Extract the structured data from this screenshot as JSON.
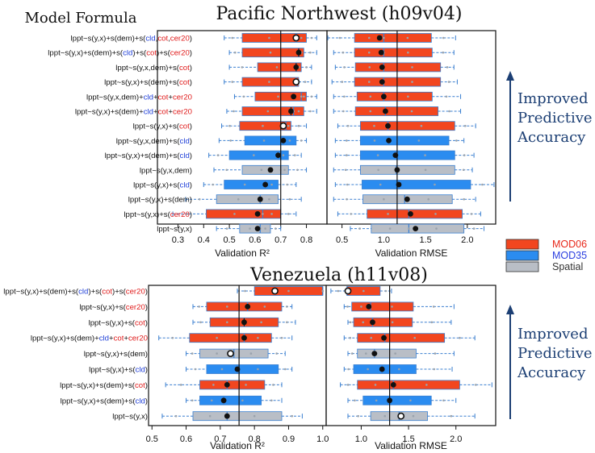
{
  "header_label": "Model Formula",
  "legend": {
    "entries": [
      {
        "label": "MOD06",
        "color": "#f2461f",
        "text_color": "#e8281a"
      },
      {
        "label": "MOD35",
        "color": "#2b8cf0",
        "text_color": "#2b3fe0"
      },
      {
        "label": "Spatial",
        "color": "#b9bec6",
        "text_color": "#333333"
      }
    ]
  },
  "colors": {
    "cot": "#e01b1b",
    "cld": "#1f3fd8",
    "cer": "#e01b1b",
    "plain": "#111111",
    "outline": "#3a7fd0",
    "arrow": "#1c3f74"
  },
  "annotation": {
    "lines": [
      "Improved",
      "Predictive",
      "Accuracy"
    ]
  },
  "chart_data": [
    {
      "type": "boxplot",
      "title": "Pacific Northwest (h09v04)",
      "panels": [
        {
          "xlabel": "Validation R²",
          "xlim": [
            0.22,
            0.88
          ],
          "ticks": [
            0.3,
            0.4,
            0.5,
            0.6,
            0.7,
            0.8
          ],
          "reference": 0.7
        },
        {
          "xlabel": "Validation RMSE",
          "xlim": [
            0.32,
            2.34
          ],
          "ticks": [
            0.5,
            1.0,
            1.5,
            2.0
          ],
          "reference": 1.16
        }
      ],
      "rows": [
        {
          "formula": [
            [
              "lppt~s(y,x)+s(dem)+s(",
              "plain"
            ],
            [
              "cld",
              "cld"
            ],
            [
              ",",
              "plain"
            ],
            [
              "cot",
              "cot"
            ],
            [
              ",",
              "plain"
            ],
            [
              "cer20",
              "cer"
            ],
            [
              ")",
              "plain"
            ]
          ],
          "category": "MOD06",
          "r2": {
            "wl": 0.48,
            "q1": 0.55,
            "med": 0.76,
            "q3": 0.8,
            "wh": 0.84,
            "mean": 0.76,
            "mean_marker": "open"
          },
          "rmse": {
            "wl": 0.33,
            "q1": 0.65,
            "med": 1.0,
            "q3": 1.57,
            "wh": 1.86,
            "mean": 0.95,
            "mean_marker": "filled"
          }
        },
        {
          "formula": [
            [
              "lppt~s(y,x)+s(dem)+s(",
              "plain"
            ],
            [
              "cld",
              "cld"
            ],
            [
              ")+s(",
              "plain"
            ],
            [
              "cot",
              "cot"
            ],
            [
              ")+s(",
              "plain"
            ],
            [
              "cer20",
              "cer"
            ],
            [
              ")",
              "plain"
            ]
          ],
          "category": "MOD06",
          "r2": {
            "wl": 0.5,
            "q1": 0.55,
            "med": 0.77,
            "q3": 0.79,
            "wh": 0.84,
            "mean": 0.77,
            "mean_marker": "cross"
          },
          "rmse": {
            "wl": 0.4,
            "q1": 0.65,
            "med": 1.0,
            "q3": 1.58,
            "wh": 1.84,
            "mean": 0.97,
            "mean_marker": "filled"
          }
        },
        {
          "formula": [
            [
              "lppt~s(y,x,dem)+s(",
              "plain"
            ],
            [
              "cot",
              "cot"
            ],
            [
              ")",
              "plain"
            ]
          ],
          "category": "MOD06",
          "r2": {
            "wl": 0.5,
            "q1": 0.61,
            "med": 0.76,
            "q3": 0.78,
            "wh": 0.82,
            "mean": 0.76,
            "mean_marker": "cross"
          },
          "rmse": {
            "wl": 0.42,
            "q1": 0.66,
            "med": 1.0,
            "q3": 1.68,
            "wh": 1.84,
            "mean": 0.98,
            "mean_marker": "filled"
          }
        },
        {
          "formula": [
            [
              "lppt~s(y,x)+s(dem)+s(",
              "plain"
            ],
            [
              "cot",
              "cot"
            ],
            [
              ")",
              "plain"
            ]
          ],
          "category": "MOD06",
          "r2": {
            "wl": 0.48,
            "q1": 0.55,
            "med": 0.76,
            "q3": 0.77,
            "wh": 0.82,
            "mean": 0.76,
            "mean_marker": "open"
          },
          "rmse": {
            "wl": 0.38,
            "q1": 0.65,
            "med": 1.0,
            "q3": 1.68,
            "wh": 1.88,
            "mean": 0.98,
            "mean_marker": "filled"
          }
        },
        {
          "formula": [
            [
              "lppt~s(y,x,dem)+",
              "plain"
            ],
            [
              "cld",
              "cld"
            ],
            [
              "+",
              "plain"
            ],
            [
              "cot",
              "cot"
            ],
            [
              "+",
              "plain"
            ],
            [
              "cer20",
              "cer"
            ]
          ],
          "category": "MOD06",
          "r2": {
            "wl": 0.52,
            "q1": 0.6,
            "med": 0.78,
            "q3": 0.8,
            "wh": 0.84,
            "mean": 0.75,
            "mean_marker": "filled"
          },
          "rmse": {
            "wl": 0.4,
            "q1": 0.68,
            "med": 1.0,
            "q3": 1.58,
            "wh": 1.92,
            "mean": 1.0,
            "mean_marker": "filled"
          }
        },
        {
          "formula": [
            [
              "lppt~s(y,x)+s(dem)+",
              "plain"
            ],
            [
              "cld",
              "cld"
            ],
            [
              "+",
              "plain"
            ],
            [
              "cot",
              "cot"
            ],
            [
              "+",
              "plain"
            ],
            [
              "cer20",
              "cer"
            ]
          ],
          "category": "MOD06",
          "r2": {
            "wl": 0.49,
            "q1": 0.55,
            "med": 0.75,
            "q3": 0.79,
            "wh": 0.84,
            "mean": 0.74,
            "mean_marker": "cross"
          },
          "rmse": {
            "wl": 0.4,
            "q1": 0.66,
            "med": 1.02,
            "q3": 1.65,
            "wh": 1.92,
            "mean": 1.02,
            "mean_marker": "filled"
          }
        },
        {
          "formula": [
            [
              "lppt~s(y,x)+s(",
              "plain"
            ],
            [
              "cot",
              "cot"
            ],
            [
              ")",
              "plain"
            ]
          ],
          "category": "MOD06",
          "r2": {
            "wl": 0.47,
            "q1": 0.54,
            "med": 0.72,
            "q3": 0.74,
            "wh": 0.8,
            "mean": 0.71,
            "mean_marker": "open"
          },
          "rmse": {
            "wl": 0.45,
            "q1": 0.72,
            "med": 1.05,
            "q3": 1.85,
            "wh": 2.1,
            "mean": 1.05,
            "mean_marker": "filled"
          }
        },
        {
          "formula": [
            [
              "lppt~s(y,x,dem)+s(",
              "plain"
            ],
            [
              "cld",
              "cld"
            ],
            [
              ")",
              "plain"
            ]
          ],
          "category": "MOD35",
          "r2": {
            "wl": 0.46,
            "q1": 0.56,
            "med": 0.71,
            "q3": 0.76,
            "wh": 0.8,
            "mean": 0.71,
            "mean_marker": "filled"
          },
          "rmse": {
            "wl": 0.42,
            "q1": 0.72,
            "med": 1.06,
            "q3": 1.78,
            "wh": 1.96,
            "mean": 1.06,
            "mean_marker": "filled"
          }
        },
        {
          "formula": [
            [
              "lppt~s(y,x)+s(dem)+s(",
              "plain"
            ],
            [
              "cld",
              "cld"
            ],
            [
              ")",
              "plain"
            ]
          ],
          "category": "MOD35",
          "r2": {
            "wl": 0.42,
            "q1": 0.5,
            "med": 0.69,
            "q3": 0.73,
            "wh": 0.78,
            "mean": 0.69,
            "mean_marker": "filled"
          },
          "rmse": {
            "wl": 0.42,
            "q1": 0.72,
            "med": 1.14,
            "q3": 1.85,
            "wh": 2.08,
            "mean": 1.14,
            "mean_marker": "filled"
          }
        },
        {
          "formula": [
            [
              "lppt~s(y,x,dem)",
              "plain"
            ]
          ],
          "category": "Spatial",
          "r2": {
            "wl": 0.44,
            "q1": 0.55,
            "med": 0.7,
            "q3": 0.73,
            "wh": 0.8,
            "mean": 0.66,
            "mean_marker": "filled"
          },
          "rmse": {
            "wl": 0.4,
            "q1": 0.72,
            "med": 1.15,
            "q3": 1.85,
            "wh": 2.06,
            "mean": 1.16,
            "mean_marker": "filled"
          }
        },
        {
          "formula": [
            [
              "lppt~s(y,x)+s(",
              "plain"
            ],
            [
              "cld",
              "cld"
            ],
            [
              ")",
              "plain"
            ]
          ],
          "category": "MOD35",
          "r2": {
            "wl": 0.4,
            "q1": 0.48,
            "med": 0.64,
            "q3": 0.69,
            "wh": 0.76,
            "mean": 0.64,
            "mean_marker": "filled"
          },
          "rmse": {
            "wl": 0.42,
            "q1": 0.74,
            "med": 1.18,
            "q3": 2.04,
            "wh": 2.32,
            "mean": 1.18,
            "mean_marker": "filled"
          }
        },
        {
          "formula": [
            [
              "lppt~s(y,x)+s(dem)",
              "plain"
            ]
          ],
          "category": "Spatial",
          "r2": {
            "wl": 0.33,
            "q1": 0.45,
            "med": 0.62,
            "q3": 0.69,
            "wh": 0.78,
            "mean": 0.62,
            "mean_marker": "filled"
          },
          "rmse": {
            "wl": 0.4,
            "q1": 0.75,
            "med": 1.25,
            "q3": 1.82,
            "wh": 2.1,
            "mean": 1.28,
            "mean_marker": "filled"
          }
        },
        {
          "formula": [
            [
              "lppt~s(y,x)+s(",
              "plain"
            ],
            [
              "cer20",
              "cer"
            ],
            [
              ")",
              "plain"
            ]
          ],
          "category": "MOD06",
          "r2": {
            "wl": 0.28,
            "q1": 0.41,
            "med": 0.63,
            "q3": 0.7,
            "wh": 0.76,
            "mean": 0.61,
            "mean_marker": "filled"
          },
          "rmse": {
            "wl": 0.45,
            "q1": 0.8,
            "med": 1.3,
            "q3": 1.94,
            "wh": 2.16,
            "mean": 1.32,
            "mean_marker": "filled"
          }
        },
        {
          "formula": [
            [
              "lppt~s(y,x)",
              "plain"
            ]
          ],
          "category": "Spatial",
          "r2": {
            "wl": 0.45,
            "q1": 0.54,
            "med": 0.62,
            "q3": 0.66,
            "wh": 0.7,
            "mean": 0.61,
            "mean_marker": "filled"
          },
          "rmse": {
            "wl": 0.6,
            "q1": 0.85,
            "med": 1.3,
            "q3": 1.96,
            "wh": 2.2,
            "mean": 1.38,
            "mean_marker": "filled"
          }
        }
      ]
    },
    {
      "type": "boxplot",
      "title": "Venezuela (h11v08)",
      "panels": [
        {
          "xlabel": "Validation R²",
          "xlim": [
            0.49,
            1.01
          ],
          "ticks": [
            0.5,
            0.6,
            0.7,
            0.8,
            0.9,
            1.0
          ],
          "reference": 0.755
        },
        {
          "xlabel": "Validation RMSE",
          "xlim": [
            0.63,
            2.42
          ],
          "ticks": [
            1.0,
            1.5,
            2.0
          ],
          "reference": 1.3
        }
      ],
      "rows": [
        {
          "formula": [
            [
              "lppt~s(y,x)+s(dem)+s(",
              "plain"
            ],
            [
              "cld",
              "cld"
            ],
            [
              ")+s(",
              "plain"
            ],
            [
              "cot",
              "cot"
            ],
            [
              ")+s(",
              "plain"
            ],
            [
              "cer20",
              "cer"
            ],
            [
              ")",
              "plain"
            ]
          ],
          "category": "MOD06",
          "r2": {
            "wl": 0.75,
            "q1": 0.8,
            "med": 1.0,
            "q3": 1.0,
            "wh": 1.0,
            "mean": 0.86,
            "mean_marker": "open"
          },
          "rmse": {
            "wl": 0.68,
            "q1": 0.85,
            "med": 0.85,
            "q3": 1.2,
            "wh": 1.32,
            "mean": 0.86,
            "mean_marker": "open"
          }
        },
        {
          "formula": [
            [
              "lppt~s(y,x)+s(",
              "plain"
            ],
            [
              "cer20",
              "cer"
            ],
            [
              ")",
              "plain"
            ]
          ],
          "category": "MOD06",
          "r2": {
            "wl": 0.62,
            "q1": 0.66,
            "med": 0.78,
            "q3": 0.88,
            "wh": 0.91,
            "mean": 0.78,
            "mean_marker": "filled"
          },
          "rmse": {
            "wl": 0.82,
            "q1": 0.9,
            "med": 1.1,
            "q3": 1.55,
            "wh": 1.98,
            "mean": 1.08,
            "mean_marker": "filled"
          }
        },
        {
          "formula": [
            [
              "lppt~s(y,x)+s(",
              "plain"
            ],
            [
              "cot",
              "cot"
            ],
            [
              ")",
              "plain"
            ]
          ],
          "category": "MOD06",
          "r2": {
            "wl": 0.62,
            "q1": 0.67,
            "med": 0.77,
            "q3": 0.87,
            "wh": 0.92,
            "mean": 0.77,
            "mean_marker": "cross"
          },
          "rmse": {
            "wl": 0.86,
            "q1": 0.92,
            "med": 1.12,
            "q3": 1.54,
            "wh": 1.95,
            "mean": 1.12,
            "mean_marker": "filled"
          }
        },
        {
          "formula": [
            [
              "lppt~s(y,x)+s(dem)+",
              "plain"
            ],
            [
              "cld",
              "cld"
            ],
            [
              "+",
              "plain"
            ],
            [
              "cot",
              "cot"
            ],
            [
              "+",
              "plain"
            ],
            [
              "cer20",
              "cer"
            ]
          ],
          "category": "MOD06",
          "r2": {
            "wl": 0.52,
            "q1": 0.61,
            "med": 0.77,
            "q3": 0.85,
            "wh": 0.91,
            "mean": 0.77,
            "mean_marker": "filled"
          },
          "rmse": {
            "wl": 0.82,
            "q1": 0.96,
            "med": 1.25,
            "q3": 1.88,
            "wh": 2.2,
            "mean": 1.24,
            "mean_marker": "filled"
          }
        },
        {
          "formula": [
            [
              "lppt~s(y,x)+s(dem)",
              "plain"
            ]
          ],
          "category": "Spatial",
          "r2": {
            "wl": 0.6,
            "q1": 0.64,
            "med": 0.74,
            "q3": 0.84,
            "wh": 0.89,
            "mean": 0.73,
            "mean_marker": "open"
          },
          "rmse": {
            "wl": 0.86,
            "q1": 0.96,
            "med": 1.14,
            "q3": 1.58,
            "wh": 1.98,
            "mean": 1.14,
            "mean_marker": "filled"
          }
        },
        {
          "formula": [
            [
              "lppt~s(y,x)+s(",
              "plain"
            ],
            [
              "cld",
              "cld"
            ],
            [
              ")",
              "plain"
            ]
          ],
          "category": "MOD35",
          "r2": {
            "wl": 0.6,
            "q1": 0.66,
            "med": 0.75,
            "q3": 0.87,
            "wh": 0.91,
            "mean": 0.75,
            "mean_marker": "filled"
          },
          "rmse": {
            "wl": 0.82,
            "q1": 0.92,
            "med": 1.22,
            "q3": 1.58,
            "wh": 1.96,
            "mean": 1.22,
            "mean_marker": "filled"
          }
        },
        {
          "formula": [
            [
              "lppt~s(y,x)+s(dem)+s(",
              "plain"
            ],
            [
              "cot",
              "cot"
            ],
            [
              ")",
              "plain"
            ]
          ],
          "category": "MOD06",
          "r2": {
            "wl": 0.54,
            "q1": 0.64,
            "med": 0.72,
            "q3": 0.83,
            "wh": 0.88,
            "mean": 0.72,
            "mean_marker": "filled"
          },
          "rmse": {
            "wl": 0.78,
            "q1": 0.96,
            "med": 1.34,
            "q3": 2.04,
            "wh": 2.38,
            "mean": 1.34,
            "mean_marker": "filled"
          }
        },
        {
          "formula": [
            [
              "lppt~s(y,x)+s(dem)+s(",
              "plain"
            ],
            [
              "cld",
              "cld"
            ],
            [
              ")",
              "plain"
            ]
          ],
          "category": "MOD35",
          "r2": {
            "wl": 0.6,
            "q1": 0.64,
            "med": 0.71,
            "q3": 0.82,
            "wh": 0.88,
            "mean": 0.71,
            "mean_marker": "filled"
          },
          "rmse": {
            "wl": 0.86,
            "q1": 1.02,
            "med": 1.3,
            "q3": 1.74,
            "wh": 2.0,
            "mean": 1.3,
            "mean_marker": "filled"
          }
        },
        {
          "formula": [
            [
              "lppt~s(y,x)",
              "plain"
            ]
          ],
          "category": "Spatial",
          "r2": {
            "wl": 0.53,
            "q1": 0.62,
            "med": 0.72,
            "q3": 0.88,
            "wh": 0.94,
            "mean": 0.72,
            "mean_marker": "filled"
          },
          "rmse": {
            "wl": 0.86,
            "q1": 1.1,
            "med": 1.4,
            "q3": 1.7,
            "wh": 2.2,
            "mean": 1.42,
            "mean_marker": "open"
          }
        }
      ]
    }
  ]
}
